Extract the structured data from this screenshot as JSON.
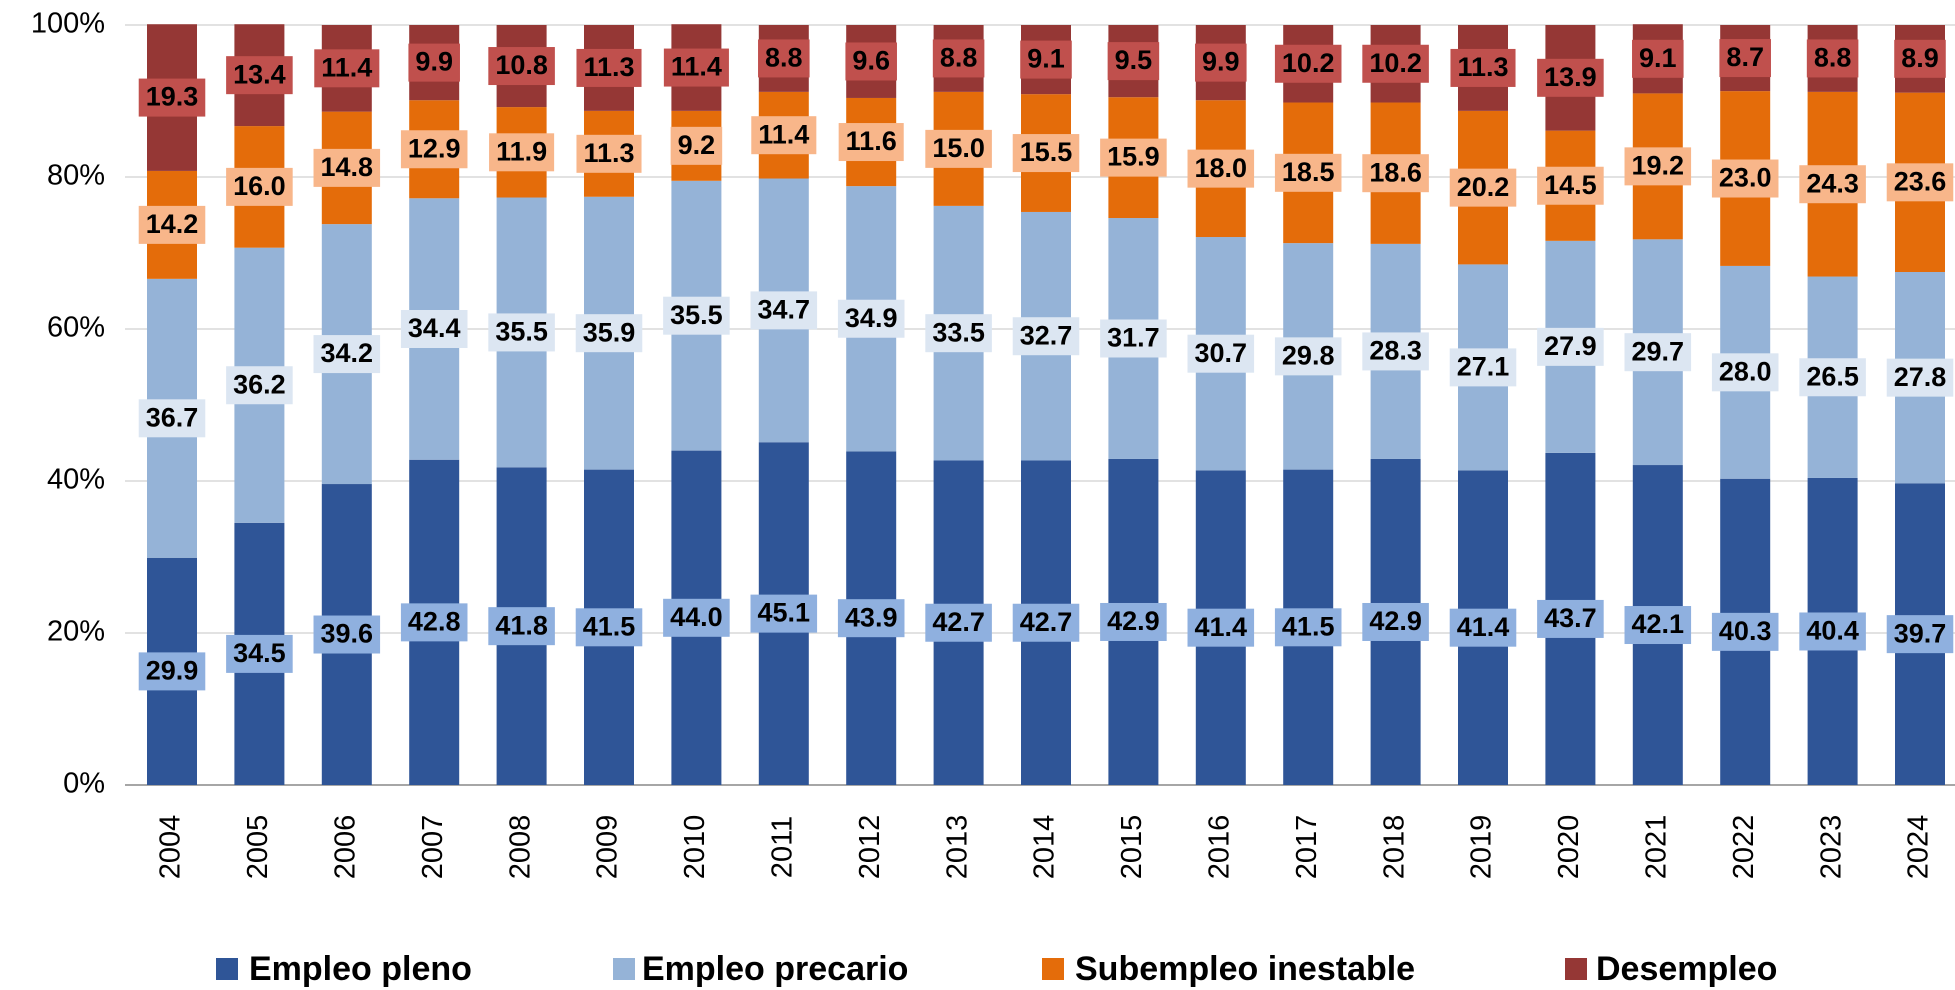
{
  "chart_data": {
    "type": "stacked_bar",
    "categories": [
      "2004",
      "2005",
      "2006",
      "2007",
      "2008",
      "2009",
      "2010",
      "2011",
      "2012",
      "2013",
      "2014",
      "2015",
      "2016",
      "2017",
      "2018",
      "2019",
      "2020",
      "2021",
      "2022",
      "2023",
      "2024"
    ],
    "series": [
      {
        "name": "Empleo pleno",
        "color": "#2f5597",
        "label_color": "#8fb0df",
        "values": [
          29.9,
          34.5,
          39.6,
          42.8,
          41.8,
          41.5,
          44.0,
          45.1,
          43.9,
          42.7,
          42.7,
          42.9,
          41.4,
          41.5,
          42.9,
          41.4,
          43.7,
          42.1,
          40.3,
          40.4,
          39.7
        ],
        "value_labels": [
          "29.9",
          "34.5",
          "39.6",
          "42.8",
          "41.8",
          "41.5",
          "44.0",
          "45.1",
          "43.9",
          "42.7",
          "42.7",
          "42.9",
          "41.4",
          "41.5",
          "42.9",
          "41.4",
          "43.7",
          "42.1",
          "40.3",
          "40.4",
          "39.7"
        ]
      },
      {
        "name": "Empleo precario",
        "color": "#95b3d7",
        "label_color": "#dce6f2",
        "values": [
          36.7,
          36.2,
          34.2,
          34.4,
          35.5,
          35.9,
          35.5,
          34.7,
          34.9,
          33.5,
          32.7,
          31.7,
          30.7,
          29.8,
          28.3,
          27.1,
          27.9,
          29.7,
          28.0,
          26.5,
          27.8
        ],
        "value_labels": [
          "36.7",
          "36.2",
          "34.2",
          "34.4",
          "35.5",
          "35.9",
          "35.5",
          "34.7",
          "34.9",
          "33.5",
          "32.7",
          "31.7",
          "30.7",
          "29.8",
          "28.3",
          "27.1",
          "27.9",
          "29.7",
          "28.0",
          "26.5",
          "27.8"
        ]
      },
      {
        "name": "Subempleo inestable",
        "color": "#e46c0a",
        "label_color": "#f8b68a",
        "values": [
          14.2,
          16.0,
          14.8,
          12.9,
          11.9,
          11.3,
          9.2,
          11.4,
          11.6,
          15.0,
          15.5,
          15.9,
          18.0,
          18.5,
          18.6,
          20.2,
          14.5,
          19.2,
          23.0,
          24.3,
          23.6
        ],
        "value_labels": [
          "14.2",
          "16.0",
          "14.8",
          "12.9",
          "11.9",
          "11.3",
          "9.2",
          "11.4",
          "11.6",
          "15.0",
          "15.5",
          "15.9",
          "18.0",
          "18.5",
          "18.6",
          "20.2",
          "14.5",
          "19.2",
          "23.0",
          "24.3",
          "23.6"
        ]
      },
      {
        "name": "Desempleo",
        "color": "#953735",
        "label_color": "#c0504d",
        "values": [
          19.3,
          13.4,
          11.4,
          9.9,
          10.8,
          11.3,
          11.4,
          8.8,
          9.6,
          8.8,
          9.1,
          9.5,
          9.9,
          10.2,
          10.2,
          11.3,
          13.9,
          9.1,
          8.7,
          8.8,
          8.9
        ],
        "value_labels": [
          "19.3",
          "13.4",
          "11.4",
          "9.9",
          "10.8",
          "11.3",
          "11.4",
          "8.8",
          "9.6",
          "8.8",
          "9.1",
          "9.5",
          "9.9",
          "10.2",
          "10.2",
          "11.3",
          "13.9",
          "9.1",
          "8.7",
          "8.8",
          "8.9"
        ]
      }
    ],
    "ylim": [
      0,
      100
    ],
    "yticks": [
      {
        "value": 0,
        "label": "0%"
      },
      {
        "value": 20,
        "label": "20%"
      },
      {
        "value": 40,
        "label": "40%"
      },
      {
        "value": 60,
        "label": "60%"
      },
      {
        "value": 80,
        "label": "80%"
      },
      {
        "value": 100,
        "label": "100%"
      }
    ],
    "grid": true,
    "legend": "bottom"
  }
}
